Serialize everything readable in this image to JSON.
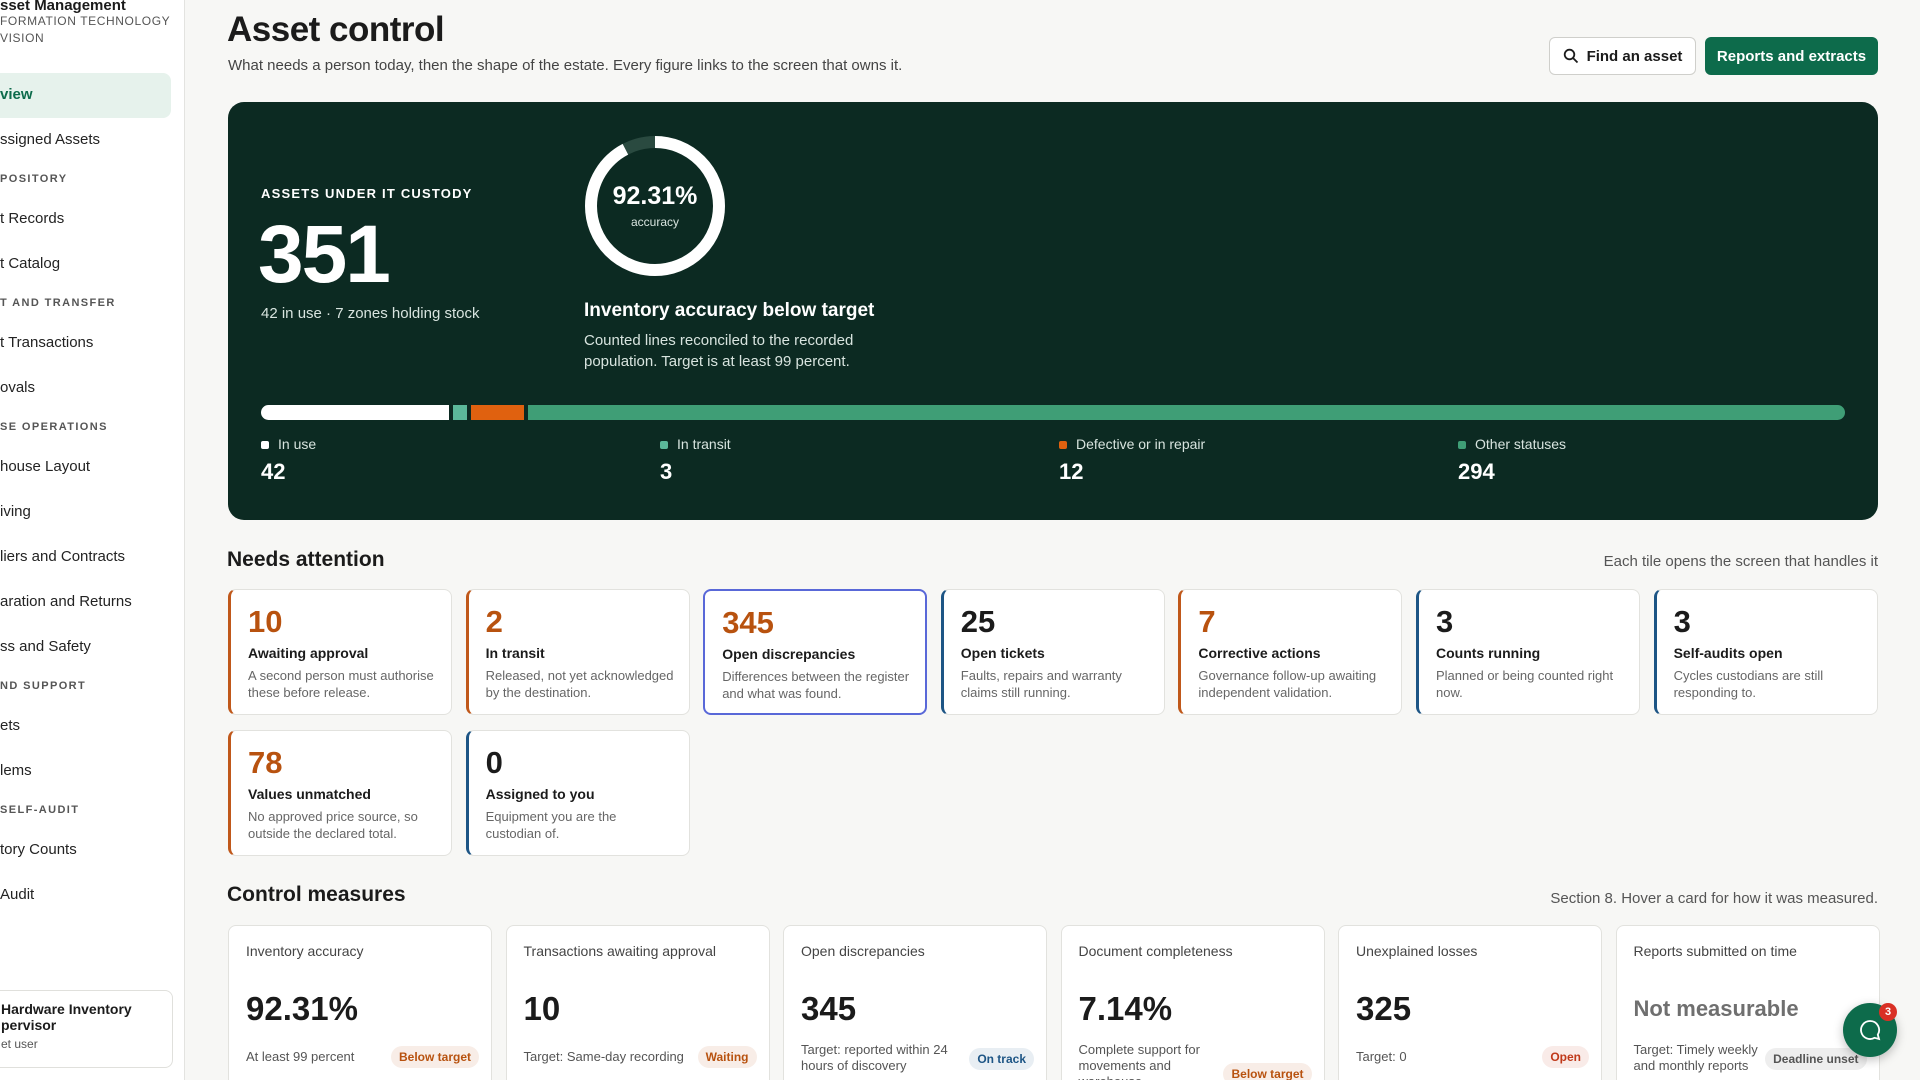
{
  "sidebar": {
    "org": [
      "sset Management",
      "FORMATION TECHNOLOGY",
      "VISION"
    ],
    "nav": [
      {
        "items": [
          "view",
          "ssigned Assets"
        ]
      },
      {
        "heading": "POSITORY",
        "items": [
          "t Records",
          "t Catalog"
        ]
      },
      {
        "heading": "T AND TRANSFER",
        "items": [
          "t Transactions",
          "ovals"
        ]
      },
      {
        "heading": "SE OPERATIONS",
        "items": [
          "house Layout",
          "iving",
          "liers and Contracts",
          "aration and Returns",
          "ss and Safety"
        ]
      },
      {
        "heading": "ND SUPPORT",
        "items": [
          "ets",
          "lems"
        ]
      },
      {
        "heading": "SELF-AUDIT",
        "items": [
          "tory Counts",
          "Audit"
        ]
      }
    ],
    "active": "view",
    "user": [
      "Hardware Inventory",
      "pervisor",
      "et user"
    ]
  },
  "header": {
    "title": "Asset control",
    "subtitle": "What needs a person today, then the shape of the estate. Every figure links to the screen that owns it.",
    "buttons": [
      "Find an asset",
      "Reports and extracts"
    ]
  },
  "hero": {
    "label": "ASSETS UNDER IT CUSTODY",
    "total": 351,
    "sub": "42 in use · 7 zones holding stock",
    "accuracy": {
      "value": 92.31,
      "label": "92.31%"
    },
    "accuracy_caption": "accuracy",
    "heading": "Inventory accuracy below target",
    "description": [
      "Counted lines reconciled to the recorded",
      "population. Target is at least 99 percent."
    ],
    "breakdown": [
      {
        "name": "In use",
        "value": 42,
        "color": "#ffffff"
      },
      {
        "name": "In transit",
        "value": 3,
        "color": "#5bb89a"
      },
      {
        "name": "Defective or in repair",
        "value": 12,
        "color": "#e0610f"
      },
      {
        "name": "Other statuses",
        "value": 294,
        "color": "#3f9e76"
      }
    ]
  },
  "attention": {
    "title": "Needs attention",
    "note": "Each tile opens the screen that handles it",
    "tiles": [
      {
        "value": 10,
        "title": "Awaiting approval",
        "desc": [
          "A second person must authorise",
          "these before release."
        ],
        "color": "#c0581a"
      },
      {
        "value": 2,
        "title": "In transit",
        "desc": [
          "Released, not yet acknowledged",
          "by the destination."
        ],
        "color": "#c0581a"
      },
      {
        "value": 345,
        "title": "Open discrepancies",
        "desc": [
          "Differences between the register",
          "and what was found."
        ],
        "color": "#c0581a"
      },
      {
        "value": 25,
        "title": "Open tickets",
        "desc": [
          "Faults, repairs and warranty",
          "claims still running."
        ],
        "color": "#1d5585"
      },
      {
        "value": 7,
        "title": "Corrective actions",
        "desc": [
          "Governance follow-up awaiting",
          "independent validation."
        ],
        "color": "#c0581a"
      },
      {
        "value": 3,
        "title": "Counts running",
        "desc": [
          "Planned or being counted right",
          "now."
        ],
        "color": "#1d5585"
      },
      {
        "value": 3,
        "title": "Self-audits open",
        "desc": [
          "Cycles custodians are still",
          "responding to."
        ],
        "color": "#1d5585"
      },
      {
        "value": 78,
        "title": "Values unmatched",
        "desc": [
          "No approved price source, so",
          "outside the declared total."
        ],
        "color": "#c0581a"
      },
      {
        "value": 0,
        "title": "Assigned to you",
        "desc": [
          "Equipment you are the",
          "custodian of."
        ],
        "color": "#1d5585"
      }
    ]
  },
  "measures": {
    "title": "Control measures",
    "note": "Section 8. Hover a card for how it was measured.",
    "cards": [
      {
        "title": "Inventory accuracy",
        "value": "92.31%",
        "target": [
          "At least 99 percent"
        ],
        "badge": "Below target",
        "badge_color": "#b8520f"
      },
      {
        "title": "Transactions awaiting approval",
        "value": "10",
        "target": [
          "Target: Same-day recording"
        ],
        "badge": "Waiting",
        "badge_color": "#b8520f"
      },
      {
        "title": "Open discrepancies",
        "value": "345",
        "target": [
          "Target: reported within 24",
          "hours of discovery"
        ],
        "badge": "On track",
        "badge_color": "#1d5585"
      },
      {
        "title": "Document completeness",
        "value": "7.14%",
        "target": [
          "Complete support for",
          "movements and",
          "warehouse"
        ],
        "badge": "Below target",
        "badge_color": "#b8520f"
      },
      {
        "title": "Unexplained losses",
        "value": "325",
        "target": [
          "Target: 0"
        ],
        "badge": "Open",
        "badge_color": "#c0391a"
      },
      {
        "title": "Reports submitted on time",
        "value": "Not measurable",
        "value_color": "#6f6f6f",
        "target": [
          "Target: Timely weekly",
          "and monthly reports"
        ],
        "badge": "Deadline unset",
        "badge_color": "#555555"
      }
    ]
  },
  "chat": {
    "badge": 3
  }
}
